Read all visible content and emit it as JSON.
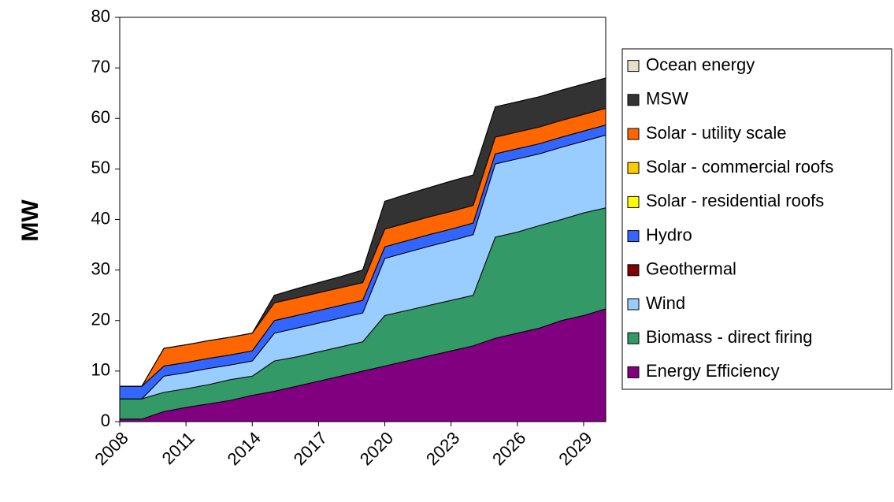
{
  "chart_data": {
    "type": "stacked_area",
    "y_label": "MW",
    "x": [
      2008,
      2009,
      2010,
      2011,
      2012,
      2013,
      2014,
      2015,
      2016,
      2017,
      2018,
      2019,
      2020,
      2021,
      2022,
      2023,
      2024,
      2025,
      2026,
      2027,
      2028,
      2029,
      2030
    ],
    "xlim": [
      2008,
      2030
    ],
    "xticks": [
      2008,
      2011,
      2014,
      2017,
      2020,
      2023,
      2026,
      2029
    ],
    "ylim": [
      0,
      80
    ],
    "yticks": [
      0,
      10,
      20,
      30,
      40,
      50,
      60,
      70,
      80
    ],
    "grid": false,
    "legend": "right",
    "series": [
      {
        "name": "Energy Efficiency",
        "color": "#800080",
        "values": [
          0.5,
          0.5,
          2,
          2.8,
          3.5,
          4.2,
          5.2,
          6,
          7,
          8,
          9,
          10,
          11,
          12,
          13,
          14,
          15,
          16.5,
          17.5,
          18.5,
          20,
          21,
          22.3
        ]
      },
      {
        "name": "Biomass - direct firing",
        "color": "#339966",
        "values": [
          4,
          4,
          3.8,
          3.7,
          3.8,
          4.1,
          3.8,
          6,
          5.8,
          5.8,
          5.8,
          5.8,
          10,
          10,
          10,
          10,
          10,
          20,
          20,
          20.3,
          20,
          20.3,
          20
        ]
      },
      {
        "name": "Wind",
        "color": "#99ccff",
        "values": [
          0,
          0,
          3.2,
          3.2,
          3.2,
          2.9,
          3,
          5.5,
          5.7,
          5.7,
          5.7,
          5.7,
          11.3,
          11.5,
          11.7,
          11.8,
          12,
          14.5,
          14.5,
          14.2,
          14.3,
          14.2,
          14.4
        ]
      },
      {
        "name": "Geothermal",
        "color": "#800000",
        "values": [
          0,
          0,
          0,
          0,
          0,
          0,
          0,
          0,
          0,
          0,
          0,
          0,
          0,
          0,
          0,
          0,
          0,
          0,
          0,
          0,
          0,
          0,
          0
        ]
      },
      {
        "name": "Hydro",
        "color": "#3366ff",
        "values": [
          2.5,
          2.5,
          2,
          2,
          2,
          2,
          2,
          2.5,
          2.5,
          2.5,
          2.5,
          2.5,
          2.3,
          2.3,
          2.3,
          2.3,
          2.3,
          2,
          2,
          2,
          2,
          2,
          2
        ]
      },
      {
        "name": "Solar - residential roofs",
        "color": "#ffff00",
        "values": [
          0,
          0,
          0,
          0,
          0,
          0,
          0,
          0,
          0,
          0,
          0,
          0,
          0,
          0,
          0,
          0,
          0,
          0,
          0,
          0,
          0,
          0,
          0
        ]
      },
      {
        "name": "Solar - commercial roofs",
        "color": "#ffcc00",
        "values": [
          0,
          0,
          0,
          0,
          0,
          0,
          0,
          0,
          0,
          0,
          0,
          0,
          0,
          0,
          0,
          0,
          0,
          0,
          0,
          0,
          0,
          0,
          0
        ]
      },
      {
        "name": "Solar - utility scale",
        "color": "#ff6600",
        "values": [
          0,
          0,
          3.5,
          3.5,
          3.5,
          3.5,
          3.5,
          3.5,
          3.5,
          3.5,
          3.5,
          3.5,
          3.5,
          3.5,
          3.5,
          3.5,
          3.5,
          3.3,
          3.3,
          3.3,
          3.3,
          3.3,
          3.3
        ]
      },
      {
        "name": "MSW",
        "color": "#333333",
        "values": [
          0,
          0,
          0,
          0,
          0,
          0,
          0,
          1.5,
          1.8,
          2,
          2.2,
          2.5,
          5.5,
          5.7,
          5.8,
          6,
          6,
          6,
          6,
          6,
          6,
          6,
          6
        ]
      },
      {
        "name": "Ocean energy",
        "color": "#e6e0c8",
        "values": [
          0,
          0,
          0,
          0,
          0,
          0,
          0,
          0,
          0,
          0,
          0,
          0,
          0,
          0,
          0,
          0,
          0,
          0,
          0,
          0,
          0,
          0,
          0
        ]
      }
    ]
  }
}
